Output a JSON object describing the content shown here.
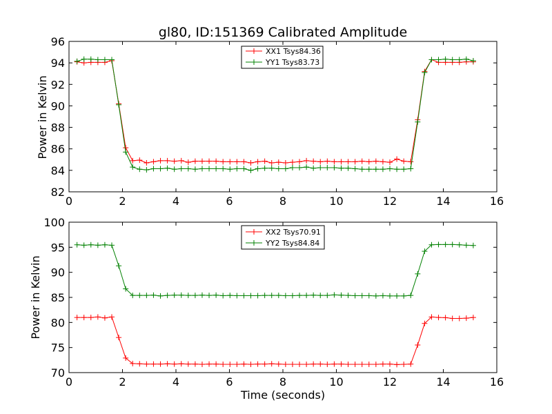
{
  "chart_data": [
    {
      "type": "line",
      "title": "gl80, ID:151369 Calibrated Amplitude",
      "xlabel": "",
      "ylabel": "Power in Kelvin",
      "xlim": [
        0,
        16
      ],
      "ylim": [
        82,
        96
      ],
      "xticks": [
        0,
        2,
        4,
        6,
        8,
        10,
        12,
        14,
        16
      ],
      "yticks": [
        82,
        84,
        86,
        88,
        90,
        92,
        94,
        96
      ],
      "legend_position": "top-center",
      "x": [
        0.3,
        0.56,
        0.82,
        1.08,
        1.34,
        1.6,
        1.86,
        2.12,
        2.38,
        2.64,
        2.9,
        3.16,
        3.42,
        3.68,
        3.94,
        4.2,
        4.46,
        4.72,
        4.98,
        5.24,
        5.5,
        5.76,
        6.02,
        6.28,
        6.54,
        6.8,
        7.06,
        7.32,
        7.58,
        7.84,
        8.1,
        8.36,
        8.62,
        8.88,
        9.14,
        9.4,
        9.66,
        9.92,
        10.18,
        10.44,
        10.7,
        10.96,
        11.22,
        11.48,
        11.74,
        12.0,
        12.26,
        12.52,
        12.78,
        13.04,
        13.3,
        13.56,
        13.82,
        14.08,
        14.34,
        14.6,
        14.86,
        15.12
      ],
      "series": [
        {
          "name": "XX1 Tsys84.36",
          "color": "#ff0000",
          "values": [
            94.1,
            94.0,
            94.05,
            94.05,
            94.05,
            94.2,
            90.2,
            86.1,
            84.9,
            84.95,
            84.7,
            84.8,
            84.9,
            84.9,
            84.85,
            84.9,
            84.75,
            84.85,
            84.85,
            84.85,
            84.85,
            84.8,
            84.8,
            84.8,
            84.8,
            84.7,
            84.8,
            84.85,
            84.7,
            84.75,
            84.7,
            84.75,
            84.8,
            84.9,
            84.85,
            84.8,
            84.85,
            84.8,
            84.8,
            84.8,
            84.8,
            84.85,
            84.8,
            84.85,
            84.8,
            84.75,
            85.05,
            84.85,
            84.8,
            88.7,
            93.2,
            94.3,
            94.05,
            94.05,
            94.05,
            94.05,
            94.1,
            94.1
          ]
        },
        {
          "name": "YY1 Tsys83.73",
          "color": "#008000",
          "values": [
            94.15,
            94.35,
            94.35,
            94.3,
            94.3,
            94.3,
            90.1,
            85.7,
            84.3,
            84.1,
            84.05,
            84.15,
            84.15,
            84.2,
            84.1,
            84.15,
            84.15,
            84.1,
            84.15,
            84.15,
            84.15,
            84.15,
            84.1,
            84.15,
            84.15,
            84.0,
            84.15,
            84.2,
            84.2,
            84.15,
            84.15,
            84.25,
            84.25,
            84.3,
            84.2,
            84.25,
            84.25,
            84.25,
            84.2,
            84.2,
            84.15,
            84.1,
            84.1,
            84.1,
            84.1,
            84.15,
            84.1,
            84.1,
            84.15,
            88.5,
            93.1,
            94.3,
            94.3,
            94.35,
            94.3,
            94.3,
            94.35,
            94.2
          ]
        }
      ]
    },
    {
      "type": "line",
      "title": "",
      "xlabel": "Time (seconds)",
      "ylabel": "Power in Kelvin",
      "xlim": [
        0,
        16
      ],
      "ylim": [
        70,
        100
      ],
      "xticks": [
        0,
        2,
        4,
        6,
        8,
        10,
        12,
        14,
        16
      ],
      "yticks": [
        70,
        75,
        80,
        85,
        90,
        95,
        100
      ],
      "legend_position": "top-center",
      "x": [
        0.3,
        0.56,
        0.82,
        1.08,
        1.34,
        1.6,
        1.86,
        2.12,
        2.38,
        2.64,
        2.9,
        3.16,
        3.42,
        3.68,
        3.94,
        4.2,
        4.46,
        4.72,
        4.98,
        5.24,
        5.5,
        5.76,
        6.02,
        6.28,
        6.54,
        6.8,
        7.06,
        7.32,
        7.58,
        7.84,
        8.1,
        8.36,
        8.62,
        8.88,
        9.14,
        9.4,
        9.66,
        9.92,
        10.18,
        10.44,
        10.7,
        10.96,
        11.22,
        11.48,
        11.74,
        12.0,
        12.26,
        12.52,
        12.78,
        13.04,
        13.3,
        13.56,
        13.82,
        14.08,
        14.34,
        14.6,
        14.86,
        15.12
      ],
      "series": [
        {
          "name": "XX2 Tsys70.91",
          "color": "#ff0000",
          "values": [
            81.0,
            81.0,
            81.0,
            81.1,
            80.9,
            81.1,
            77.0,
            72.9,
            71.8,
            71.75,
            71.7,
            71.7,
            71.7,
            71.75,
            71.7,
            71.75,
            71.7,
            71.7,
            71.65,
            71.7,
            71.7,
            71.65,
            71.65,
            71.65,
            71.7,
            71.65,
            71.7,
            71.7,
            71.75,
            71.7,
            71.65,
            71.65,
            71.65,
            71.65,
            71.7,
            71.7,
            71.65,
            71.7,
            71.7,
            71.65,
            71.65,
            71.65,
            71.65,
            71.65,
            71.7,
            71.7,
            71.6,
            71.65,
            71.7,
            75.5,
            79.8,
            81.1,
            81.0,
            80.95,
            80.8,
            80.8,
            80.85,
            81.0
          ]
        },
        {
          "name": "YY2 Tsys84.84",
          "color": "#008000",
          "values": [
            95.5,
            95.4,
            95.5,
            95.4,
            95.5,
            95.4,
            91.3,
            86.7,
            85.4,
            85.4,
            85.4,
            85.45,
            85.3,
            85.4,
            85.45,
            85.45,
            85.4,
            85.4,
            85.45,
            85.4,
            85.45,
            85.35,
            85.4,
            85.35,
            85.35,
            85.35,
            85.35,
            85.4,
            85.4,
            85.4,
            85.35,
            85.35,
            85.4,
            85.4,
            85.45,
            85.4,
            85.4,
            85.5,
            85.45,
            85.4,
            85.35,
            85.35,
            85.35,
            85.3,
            85.35,
            85.3,
            85.3,
            85.3,
            85.4,
            89.7,
            94.2,
            95.5,
            95.55,
            95.55,
            95.55,
            95.5,
            95.4,
            95.35
          ]
        }
      ]
    }
  ]
}
